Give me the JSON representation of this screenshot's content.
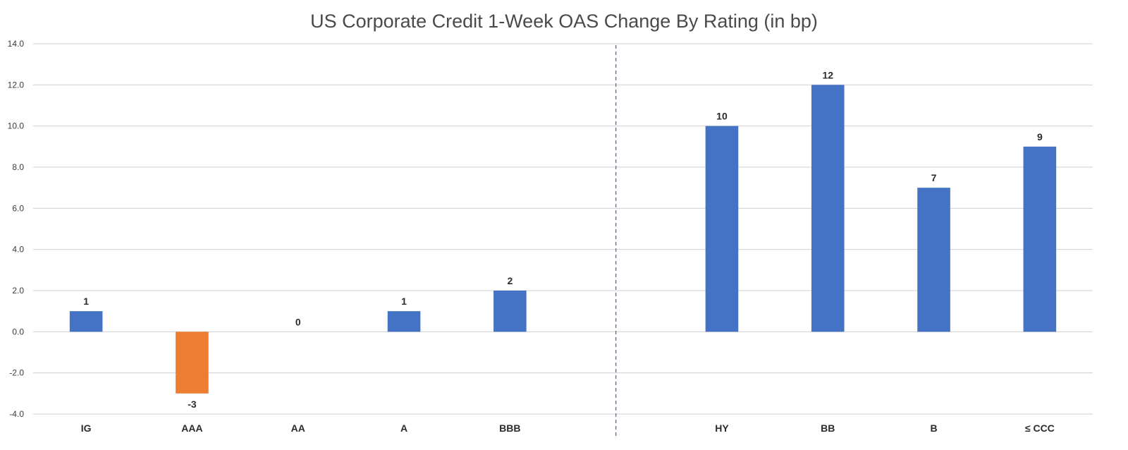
{
  "chart_data": {
    "type": "bar",
    "title": "US Corporate Credit 1-Week OAS Change By Rating (in bp)",
    "categories": [
      "IG",
      "AAA",
      "AA",
      "A",
      "BBB",
      "",
      "HY",
      "BB",
      "B",
      "≤ CCC"
    ],
    "values": [
      1,
      -3,
      0,
      1,
      2,
      null,
      10,
      12,
      7,
      9
    ],
    "data_labels": [
      "1",
      "-3",
      "0",
      "1",
      "2",
      "",
      "10",
      "12",
      "7",
      "9"
    ],
    "ylim": [
      -4,
      14
    ],
    "yticks": [
      "-4.0",
      "-2.0",
      "0.0",
      "2.0",
      "4.0",
      "6.0",
      "8.0",
      "10.0",
      "12.0",
      "14.0"
    ],
    "grid": true,
    "legend": "none",
    "divider": "dashed vertical line between BBB and HY",
    "colors": {
      "positive": "#4472c4",
      "negative": "#ed7d31",
      "divider": "#4472c4"
    }
  }
}
